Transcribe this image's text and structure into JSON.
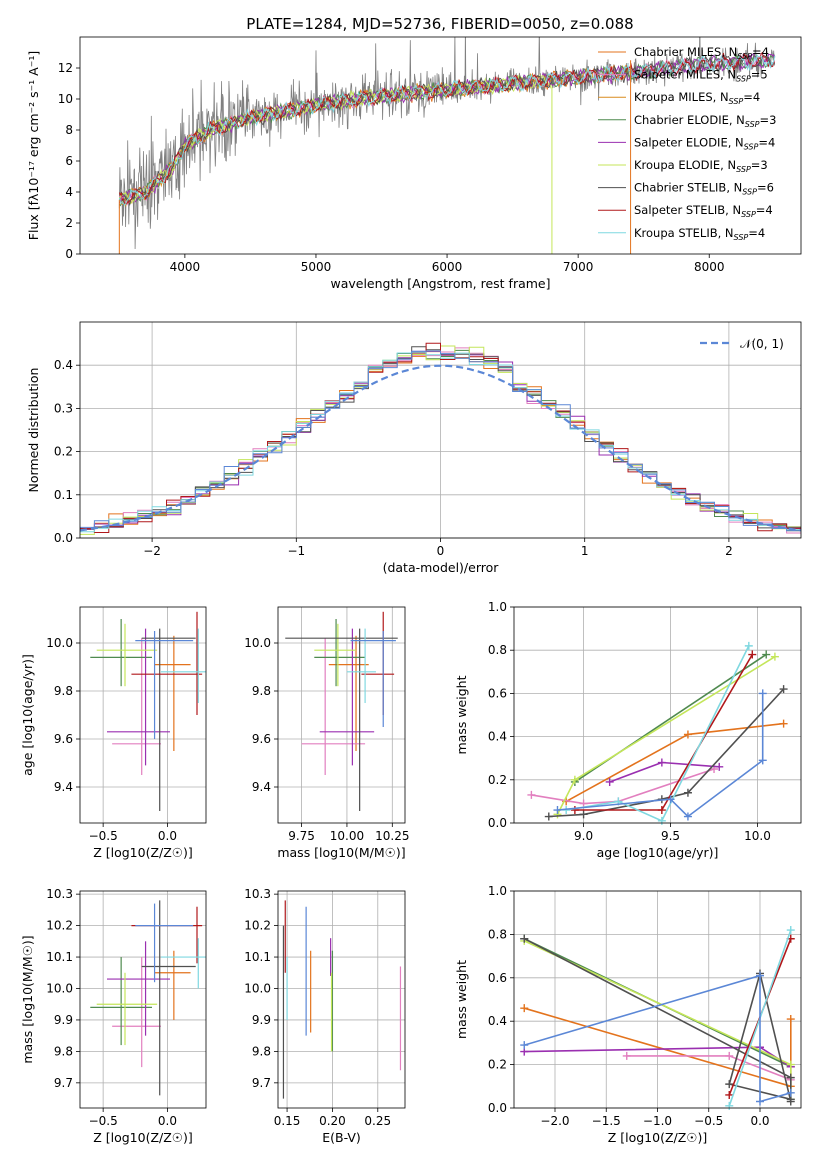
{
  "figure": {
    "title": "PLATE=1284, MJD=52736, FIBERID=0050, z=0.088"
  },
  "colors": {
    "chabrier_miles": "#e3731d",
    "salpeter_miles": "#e27fbf",
    "kroupa_miles": "#d98c1f",
    "chabrier_elodie": "#4f8a4f",
    "salpeter_elodie": "#9a2fb0",
    "kroupa_elodie": "#c4e65a",
    "chabrier_stelib": "#505050",
    "salpeter_stelib": "#b0181b",
    "kroupa_stelib": "#7fd8e0",
    "extra_blue": "#5b87d6",
    "data": "#808080"
  },
  "chart_data": [
    {
      "type": "line",
      "name": "spectrum",
      "title": "PLATE=1284, MJD=52736, FIBERID=0050, z=0.088",
      "xlabel": "wavelength [Angstrom, rest frame]",
      "ylabel": "Flux [fλ10⁻¹⁷ erg cm⁻² s⁻¹ A⁻¹]",
      "xlim": [
        3200,
        8700
      ],
      "ylim": [
        0,
        14
      ],
      "xticks": [
        "4000",
        "5000",
        "6000",
        "7000",
        "8000"
      ],
      "yticks": [
        "0",
        "2",
        "4",
        "6",
        "8",
        "10",
        "12"
      ],
      "legend": {
        "placement": "right",
        "entries": [
          "Chabrier MILES, N_SSP=4",
          "Salpeter MILES, N_SSP=5",
          "Kroupa MILES, N_SSP=4",
          "Chabrier ELODIE, N_SSP=3",
          "Salpeter ELODIE, N_SSP=4",
          "Kroupa ELODIE, N_SSP=3",
          "Chabrier STELIB, N_SSP=6",
          "Salpeter STELIB, N_SSP=4",
          "Kroupa STELIB, N_SSP=4"
        ]
      },
      "continuum": {
        "x": [
          3500,
          3700,
          3900,
          4000,
          4200,
          4500,
          5000,
          5500,
          6000,
          6500,
          7000,
          7500,
          8000,
          8500
        ],
        "y": [
          3.5,
          4.0,
          5.5,
          7.0,
          8.0,
          8.8,
          9.6,
          10.2,
          10.6,
          11.0,
          11.4,
          11.8,
          12.3,
          12.5
        ]
      },
      "data_range": [
        3500,
        8500
      ],
      "model_range": [
        3500,
        7400
      ]
    },
    {
      "type": "line",
      "name": "residual-histogram",
      "xlabel": "(data-model)/error",
      "ylabel": "Normed distribution",
      "xlim": [
        -2.5,
        2.5
      ],
      "ylim": [
        0,
        0.5
      ],
      "xticks": [
        "−2",
        "−1",
        "0",
        "1",
        "2"
      ],
      "yticks": [
        "0.0",
        "0.1",
        "0.2",
        "0.3",
        "0.4"
      ],
      "legend": {
        "placement": "top-right",
        "entries": [
          "𝒩(0, 1)"
        ]
      },
      "reference": {
        "mean": 0,
        "sigma": 1
      }
    },
    {
      "type": "scatter",
      "name": "age-vs-Z",
      "xlabel": "Z [log10(Z/Z☉)]",
      "ylabel": "age [log10(age/yr)]",
      "xlim": [
        -0.68,
        0.3
      ],
      "ylim": [
        9.25,
        10.15
      ],
      "xticks": [
        "−0.5",
        "0.0"
      ],
      "yticks": [
        "9.4",
        "9.6",
        "9.8",
        "10.0"
      ],
      "errorbars": [
        {
          "c": "chabrier_miles",
          "x": 0.05,
          "xl": -0.1,
          "xh": 0.18,
          "y": 9.91,
          "yl": 9.55,
          "yh": 10.03
        },
        {
          "c": "salpeter_miles",
          "x": -0.2,
          "xl": -0.43,
          "xh": -0.05,
          "y": 9.58,
          "yl": 9.45,
          "yh": 10.02
        },
        {
          "c": "chabrier_elodie",
          "x": -0.36,
          "xl": -0.6,
          "xh": -0.12,
          "y": 9.94,
          "yl": 9.82,
          "yh": 10.1
        },
        {
          "c": "salpeter_elodie",
          "x": -0.17,
          "xl": -0.47,
          "xh": 0.02,
          "y": 9.63,
          "yl": 9.49,
          "yh": 10.06
        },
        {
          "c": "kroupa_elodie",
          "x": -0.33,
          "xl": -0.55,
          "xh": -0.08,
          "y": 9.97,
          "yl": 9.82,
          "yh": 10.08
        },
        {
          "c": "chabrier_stelib",
          "x": -0.06,
          "xl": -0.2,
          "xh": 0.22,
          "y": 10.02,
          "yl": 9.3,
          "yh": 10.06
        },
        {
          "c": "salpeter_stelib",
          "x": 0.23,
          "xl": -0.28,
          "xh": 0.27,
          "y": 9.87,
          "yl": 9.7,
          "yh": 10.13
        },
        {
          "c": "kroupa_stelib",
          "x": 0.24,
          "xl": -0.05,
          "xh": 0.3,
          "y": 9.88,
          "yl": 9.75,
          "yh": 10.06
        },
        {
          "c": "extra_blue",
          "x": -0.1,
          "xl": -0.25,
          "xh": 0.2,
          "y": 10.01,
          "yl": 9.6,
          "yh": 10.05
        }
      ]
    },
    {
      "type": "scatter",
      "name": "age-vs-mass",
      "xlabel": "mass [log10(M/M☉)]",
      "ylabel": "",
      "xlim": [
        9.62,
        10.32
      ],
      "ylim": [
        9.25,
        10.15
      ],
      "xticks": [
        "9.75",
        "10.00",
        "10.25"
      ],
      "yticks": [
        "9.4",
        "9.6",
        "9.8",
        "10.0"
      ],
      "errorbars": [
        {
          "c": "chabrier_miles",
          "x": 10.05,
          "xl": 9.9,
          "xh": 10.12,
          "y": 9.91,
          "yl": 9.55,
          "yh": 10.03
        },
        {
          "c": "salpeter_miles",
          "x": 9.88,
          "xl": 9.75,
          "xh": 10.1,
          "y": 9.58,
          "yl": 9.45,
          "yh": 10.02
        },
        {
          "c": "chabrier_elodie",
          "x": 9.94,
          "xl": 9.82,
          "xh": 10.1,
          "y": 9.94,
          "yl": 9.82,
          "yh": 10.1
        },
        {
          "c": "salpeter_elodie",
          "x": 10.03,
          "xl": 9.85,
          "xh": 10.15,
          "y": 9.63,
          "yl": 9.49,
          "yh": 10.06
        },
        {
          "c": "kroupa_elodie",
          "x": 9.95,
          "xl": 9.82,
          "xh": 10.05,
          "y": 9.97,
          "yl": 9.82,
          "yh": 10.08
        },
        {
          "c": "chabrier_stelib",
          "x": 10.07,
          "xl": 9.66,
          "xh": 10.28,
          "y": 10.02,
          "yl": 9.3,
          "yh": 10.06
        },
        {
          "c": "salpeter_stelib",
          "x": 10.2,
          "xl": 10.08,
          "xh": 10.26,
          "y": 9.87,
          "yl": 9.7,
          "yh": 10.13
        },
        {
          "c": "kroupa_stelib",
          "x": 10.1,
          "xl": 10.0,
          "xh": 10.16,
          "y": 9.88,
          "yl": 9.75,
          "yh": 10.06
        },
        {
          "c": "extra_blue",
          "x": 10.2,
          "xl": 10.02,
          "xh": 10.27,
          "y": 10.01,
          "yl": 9.65,
          "yh": 10.05
        }
      ]
    },
    {
      "type": "line",
      "name": "massweight-vs-age",
      "xlabel": "age [log10(age/yr)]",
      "ylabel": "mass weight",
      "xlim": [
        8.6,
        10.25
      ],
      "ylim": [
        0,
        1
      ],
      "xticks": [
        "9.0",
        "9.5",
        "10.0"
      ],
      "yticks": [
        "0.0",
        "0.2",
        "0.4",
        "0.6",
        "0.8",
        "1.0"
      ],
      "series": [
        {
          "c": "chabrier_miles",
          "x": [
            8.9,
            9.6,
            10.15
          ],
          "y": [
            0.1,
            0.41,
            0.46
          ]
        },
        {
          "c": "salpeter_miles",
          "x": [
            8.7,
            9.0,
            9.2,
            9.75
          ],
          "y": [
            0.13,
            0.09,
            0.1,
            0.25
          ]
        },
        {
          "c": "chabrier_elodie",
          "x": [
            8.95,
            10.05
          ],
          "y": [
            0.19,
            0.78
          ]
        },
        {
          "c": "salpeter_elodie",
          "x": [
            9.15,
            9.45,
            9.78
          ],
          "y": [
            0.19,
            0.28,
            0.26
          ]
        },
        {
          "c": "kroupa_elodie",
          "x": [
            8.85,
            8.95,
            10.1
          ],
          "y": [
            0.04,
            0.2,
            0.77
          ]
        },
        {
          "c": "chabrier_stelib",
          "x": [
            8.8,
            9.0,
            9.45,
            9.6,
            10.15
          ],
          "y": [
            0.03,
            0.04,
            0.11,
            0.14,
            0.62
          ]
        },
        {
          "c": "salpeter_stelib",
          "x": [
            8.95,
            9.45,
            9.97
          ],
          "y": [
            0.06,
            0.06,
            0.78
          ]
        },
        {
          "c": "kroupa_stelib",
          "x": [
            8.9,
            9.2,
            9.45,
            9.95
          ],
          "y": [
            0.06,
            0.1,
            0.01,
            0.82
          ]
        },
        {
          "c": "extra_blue",
          "x": [
            8.85,
            9.5,
            9.6,
            10.03,
            10.03
          ],
          "y": [
            0.06,
            0.11,
            0.03,
            0.29,
            0.6
          ]
        }
      ]
    },
    {
      "type": "scatter",
      "name": "mass-vs-Z",
      "xlabel": "Z [log10(Z/Z☉)]",
      "ylabel": "mass [log10(M/M☉)]",
      "xlim": [
        -0.68,
        0.3
      ],
      "ylim": [
        9.62,
        10.31
      ],
      "xticks": [
        "−0.5",
        "0.0"
      ],
      "yticks": [
        "9.7",
        "9.8",
        "9.9",
        "10.0",
        "10.1",
        "10.2",
        "10.3"
      ],
      "errorbars": [
        {
          "c": "chabrier_miles",
          "x": 0.05,
          "xl": -0.1,
          "xh": 0.18,
          "y": 10.05,
          "yl": 9.9,
          "yh": 10.12
        },
        {
          "c": "salpeter_miles",
          "x": -0.2,
          "xl": -0.43,
          "xh": -0.05,
          "y": 9.88,
          "yl": 9.75,
          "yh": 10.1
        },
        {
          "c": "chabrier_elodie",
          "x": -0.36,
          "xl": -0.6,
          "xh": -0.12,
          "y": 9.94,
          "yl": 9.82,
          "yh": 10.1
        },
        {
          "c": "salpeter_elodie",
          "x": -0.17,
          "xl": -0.47,
          "xh": 0.02,
          "y": 10.03,
          "yl": 9.85,
          "yh": 10.15
        },
        {
          "c": "kroupa_elodie",
          "x": -0.33,
          "xl": -0.55,
          "xh": -0.08,
          "y": 9.95,
          "yl": 9.82,
          "yh": 10.05
        },
        {
          "c": "chabrier_stelib",
          "x": -0.06,
          "xl": -0.2,
          "xh": 0.22,
          "y": 10.07,
          "yl": 9.66,
          "yh": 10.28
        },
        {
          "c": "salpeter_stelib",
          "x": 0.23,
          "xl": -0.28,
          "xh": 0.27,
          "y": 10.2,
          "yl": 10.08,
          "yh": 10.26
        },
        {
          "c": "kroupa_stelib",
          "x": 0.24,
          "xl": -0.05,
          "xh": 0.3,
          "y": 10.1,
          "yl": 10.0,
          "yh": 10.16
        },
        {
          "c": "extra_blue",
          "x": -0.1,
          "xl": -0.25,
          "xh": 0.2,
          "y": 10.2,
          "yl": 10.02,
          "yh": 10.27
        }
      ]
    },
    {
      "type": "scatter",
      "name": "mass-vs-EBV",
      "xlabel": "E(B-V)",
      "ylabel": "",
      "xlim": [
        0.14,
        0.28
      ],
      "ylim": [
        9.62,
        10.31
      ],
      "xticks": [
        "0.15",
        "0.20",
        "0.25"
      ],
      "yticks": [
        "9.7",
        "9.8",
        "9.9",
        "10.0",
        "10.1",
        "10.2",
        "10.3"
      ],
      "errorbars": [
        {
          "c": "chabrier_miles",
          "x": 0.176,
          "yl": 9.86,
          "yh": 10.12
        },
        {
          "c": "salpeter_miles",
          "x": 0.275,
          "yl": 9.74,
          "yh": 10.07
        },
        {
          "c": "chabrier_elodie",
          "x": 0.2,
          "yl": 9.8,
          "yh": 10.12
        },
        {
          "c": "salpeter_elodie",
          "x": 0.198,
          "yl": 10.04,
          "yh": 10.16
        },
        {
          "c": "kroupa_elodie",
          "x": 0.199,
          "yl": 9.8,
          "yh": 10.05
        },
        {
          "c": "chabrier_stelib",
          "x": 0.146,
          "yl": 9.65,
          "yh": 10.2
        },
        {
          "c": "salpeter_stelib",
          "x": 0.148,
          "yl": 10.05,
          "yh": 10.28
        },
        {
          "c": "kroupa_stelib",
          "x": 0.15,
          "yl": 9.9,
          "yh": 10.1
        },
        {
          "c": "extra_blue",
          "x": 0.171,
          "yl": 9.85,
          "yh": 10.26
        }
      ]
    },
    {
      "type": "line",
      "name": "massweight-vs-Z",
      "xlabel": "Z [log10(Z/Z☉)]",
      "ylabel": "mass weight",
      "xlim": [
        -2.4,
        0.4
      ],
      "ylim": [
        0,
        1
      ],
      "xticks": [
        "−2.0",
        "−1.5",
        "−1.0",
        "−0.5",
        "0.0"
      ],
      "yticks": [
        "0.0",
        "0.2",
        "0.4",
        "0.6",
        "0.8",
        "1.0"
      ],
      "series": [
        {
          "c": "chabrier_miles",
          "x": [
            -2.3,
            0.3,
            0.3
          ],
          "y": [
            0.46,
            0.1,
            0.41
          ]
        },
        {
          "c": "salpeter_miles",
          "x": [
            -1.3,
            -0.3,
            0.3
          ],
          "y": [
            0.24,
            0.24,
            0.13
          ]
        },
        {
          "c": "chabrier_elodie",
          "x": [
            -2.3,
            0.3
          ],
          "y": [
            0.78,
            0.19
          ]
        },
        {
          "c": "salpeter_elodie",
          "x": [
            -2.3,
            0.0,
            0.3
          ],
          "y": [
            0.26,
            0.28,
            0.19
          ]
        },
        {
          "c": "kroupa_elodie",
          "x": [
            -2.3,
            0.3,
            0.3
          ],
          "y": [
            0.77,
            0.2,
            0.04
          ]
        },
        {
          "c": "chabrier_stelib",
          "x": [
            -2.3,
            0.3,
            0.3,
            -0.3,
            0.0,
            0.3
          ],
          "y": [
            0.78,
            0.14,
            0.04,
            0.11,
            0.62,
            0.03
          ]
        },
        {
          "c": "salpeter_stelib",
          "x": [
            -0.3,
            0.3
          ],
          "y": [
            0.06,
            0.78
          ]
        },
        {
          "c": "kroupa_stelib",
          "x": [
            -0.3,
            0.3
          ],
          "y": [
            0.01,
            0.82
          ]
        },
        {
          "c": "extra_blue",
          "x": [
            -2.3,
            0.0,
            0.0,
            0.3
          ],
          "y": [
            0.29,
            0.61,
            0.03,
            0.07
          ]
        }
      ]
    }
  ]
}
